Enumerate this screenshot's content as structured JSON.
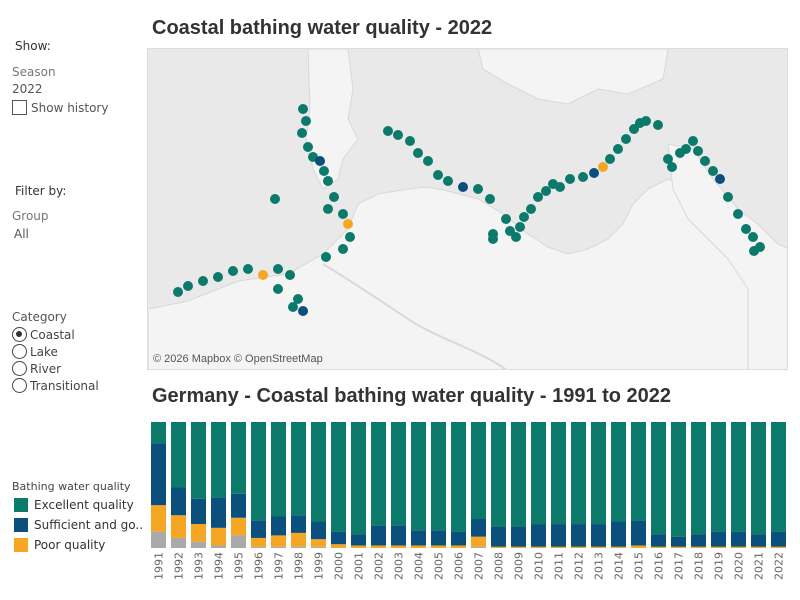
{
  "sidebar": {
    "show_label": "Show:",
    "season_label": "Season",
    "season_value": "2022",
    "show_history_label": "Show history",
    "filter_label": "Filter by:",
    "group_label": "Group",
    "group_value": "All",
    "category_label": "Category",
    "categories": [
      {
        "label": "Coastal",
        "selected": true
      },
      {
        "label": "Lake",
        "selected": false
      },
      {
        "label": "River",
        "selected": false
      },
      {
        "label": "Transitional",
        "selected": false
      }
    ],
    "legend_title": "Bathing water quality",
    "legend": [
      {
        "label": "Excellent quality",
        "color": "#0b7a6b"
      },
      {
        "label": "Sufficient and go..",
        "color": "#0b4f7c"
      },
      {
        "label": "Poor quality",
        "color": "#f5a623"
      }
    ]
  },
  "map": {
    "title": "Coastal bathing water quality - 2022",
    "attribution": "© 2026 Mapbox © OpenStreetMap",
    "colors": {
      "water": "#e9e9e9",
      "land": "#f3f3f3",
      "excellent": "#0b7a6b",
      "sufficient": "#0b4f7c",
      "poor": "#f5a623",
      "other": "#b0b0b0"
    }
  },
  "chart_data": {
    "type": "bar",
    "title": "Germany - Coastal bathing water quality - 1991 to 2022",
    "categories": [
      "1991",
      "1992",
      "1993",
      "1994",
      "1995",
      "1996",
      "1997",
      "1998",
      "1999",
      "2000",
      "2001",
      "2002",
      "2003",
      "2004",
      "2005",
      "2006",
      "2007",
      "2008",
      "2009",
      "2010",
      "2011",
      "2012",
      "2013",
      "2014",
      "2015",
      "2016",
      "2017",
      "2018",
      "2019",
      "2020",
      "2021",
      "2022"
    ],
    "stacked": true,
    "ylim": [
      0,
      100
    ],
    "series": [
      {
        "name": "",
        "color": "#aaaaaa",
        "values": [
          13,
          8,
          5,
          2,
          10,
          1,
          1,
          1,
          1,
          0,
          0,
          0,
          0,
          0,
          0,
          0,
          1,
          0,
          0,
          0,
          0,
          0,
          0,
          0,
          0,
          0,
          0,
          0,
          0,
          0,
          0,
          0
        ]
      },
      {
        "name": "Poor quality",
        "color": "#f5a623",
        "values": [
          21,
          18,
          14,
          14,
          14,
          7,
          9,
          11,
          6,
          3,
          2,
          2,
          2,
          2,
          2,
          2,
          8,
          1,
          1,
          1,
          1,
          1,
          1,
          1,
          2,
          1,
          1,
          1,
          1,
          1,
          1,
          1
        ]
      },
      {
        "name": "Sufficient and go..",
        "color": "#0b4f7c",
        "values": [
          49,
          22,
          20,
          24,
          19,
          14,
          15,
          14,
          14,
          10,
          9,
          16,
          16,
          12,
          12,
          11,
          14,
          16,
          16,
          18,
          18,
          18,
          18,
          20,
          20,
          10,
          8,
          10,
          12,
          12,
          10,
          12
        ]
      },
      {
        "name": "Excellent quality",
        "color": "#0b7a6b",
        "values": [
          17,
          52,
          61,
          60,
          57,
          78,
          75,
          74,
          79,
          87,
          89,
          82,
          82,
          86,
          86,
          87,
          77,
          83,
          83,
          81,
          81,
          81,
          81,
          79,
          78,
          89,
          91,
          89,
          87,
          87,
          89,
          87
        ]
      }
    ]
  }
}
